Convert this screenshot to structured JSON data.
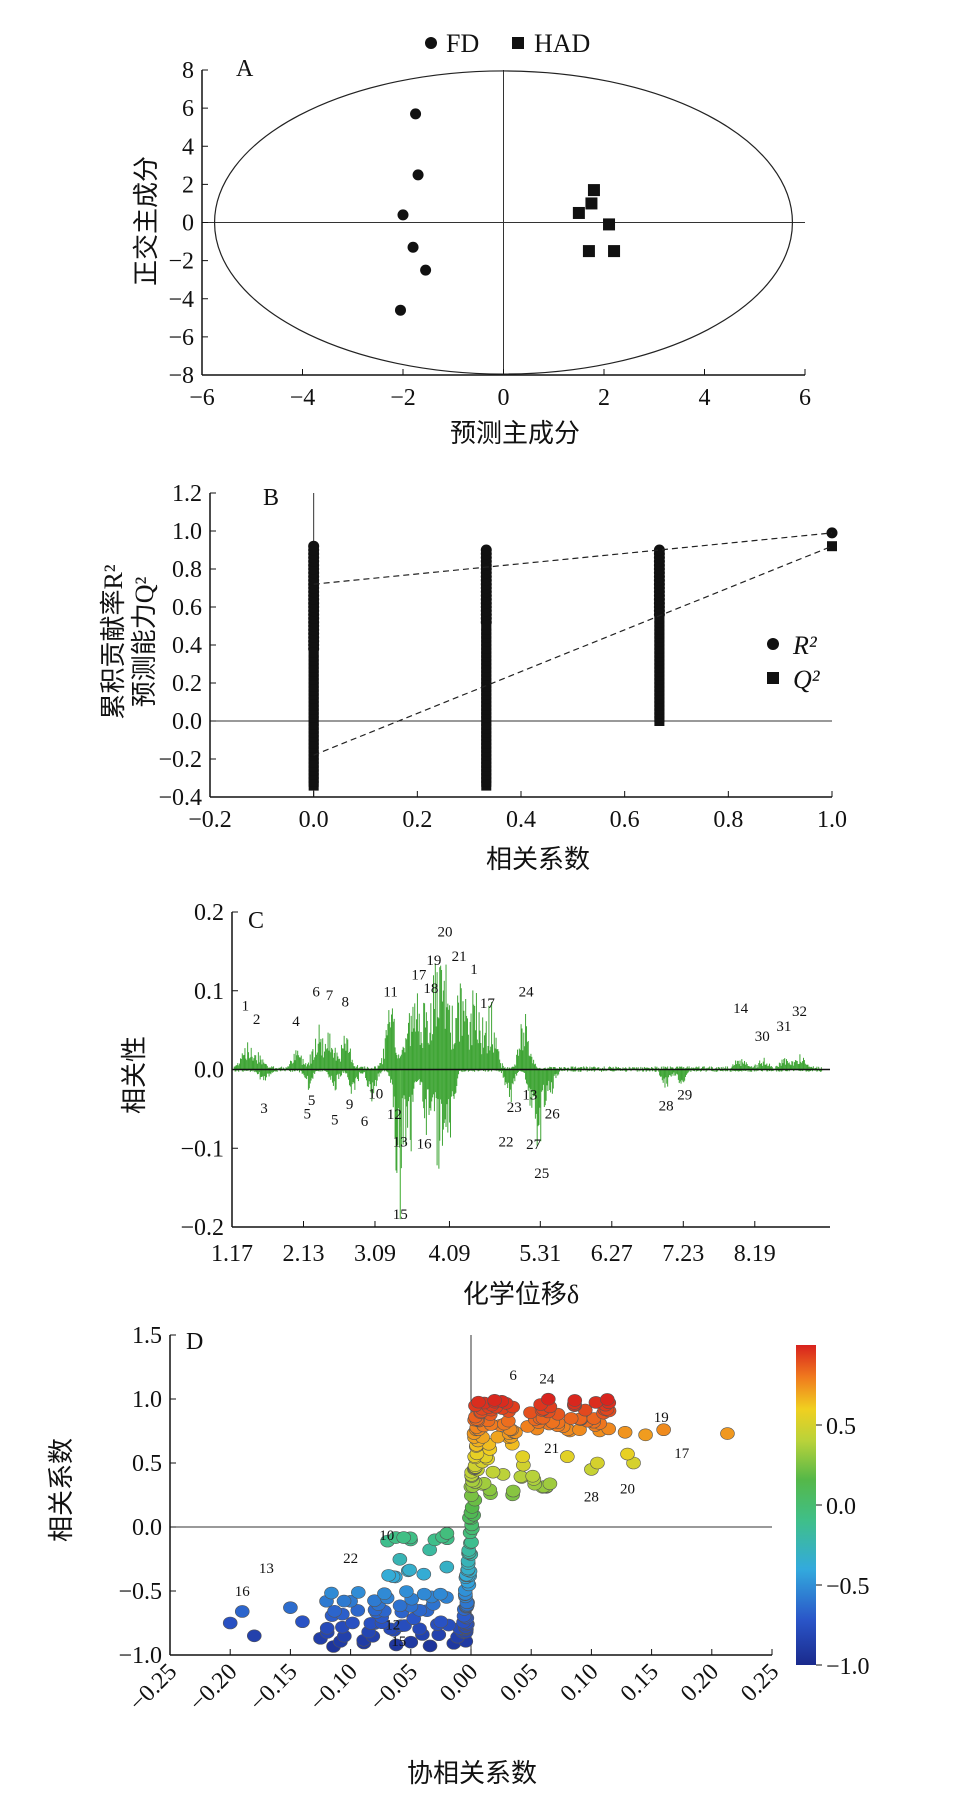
{
  "chart_data": [
    {
      "panel_label": "A",
      "type": "scatter",
      "xlabel": "预测主成分",
      "ylabel": "正交主成分",
      "xlim": [
        -6,
        6
      ],
      "ylim": [
        -8,
        8
      ],
      "xticks": [
        "−6",
        "−4",
        "−2",
        "0",
        "2",
        "4",
        "6"
      ],
      "yticks": [
        "8",
        "6",
        "4",
        "2",
        "0",
        "−2",
        "−4",
        "−6",
        "−8"
      ],
      "legend": [
        "FD",
        "HAD"
      ],
      "legend_position": "top-center",
      "ellipse": {
        "cx": 0,
        "cy": 0,
        "rx": 5.75,
        "ry": 7.95
      },
      "series": [
        {
          "name": "FD",
          "marker": "circle",
          "points": [
            [
              -1.75,
              5.7
            ],
            [
              -1.7,
              2.5
            ],
            [
              -2.0,
              0.4
            ],
            [
              -1.8,
              -1.3
            ],
            [
              -1.55,
              -2.5
            ],
            [
              -2.05,
              -4.6
            ]
          ]
        },
        {
          "name": "HAD",
          "marker": "square",
          "points": [
            [
              1.8,
              1.7
            ],
            [
              1.75,
              1.0
            ],
            [
              1.5,
              0.5
            ],
            [
              2.1,
              -0.1
            ],
            [
              1.7,
              -1.5
            ],
            [
              2.2,
              -1.5
            ]
          ]
        }
      ]
    },
    {
      "panel_label": "B",
      "type": "scatter",
      "xlabel": "相关系数",
      "ylabel_line1": "累积贡献率R²",
      "ylabel_line2": "预测能力Q²",
      "xlim": [
        -0.2,
        1.0
      ],
      "ylim": [
        -0.4,
        1.2
      ],
      "xticks": [
        "−0.2",
        "0.0",
        "0.2",
        "0.4",
        "0.6",
        "0.8",
        "1.0"
      ],
      "yticks": [
        "1.2",
        "1.0",
        "0.8",
        "0.6",
        "0.4",
        "0.2",
        "0.0",
        "−0.2",
        "−0.4"
      ],
      "legend": [
        "R²",
        "Q²"
      ],
      "legend_position": "right",
      "r2_columns": [
        {
          "x": 0.0,
          "ymin": 0.38,
          "ymax": 0.93
        },
        {
          "x": 0.333,
          "ymin": 0.52,
          "ymax": 0.91
        },
        {
          "x": 0.667,
          "ymin": 0.56,
          "ymax": 0.91
        }
      ],
      "q2_columns": [
        {
          "x": 0.0,
          "ymin": -0.34,
          "ymax": 0.37
        },
        {
          "x": 0.333,
          "ymin": -0.34,
          "ymax": 0.5
        },
        {
          "x": 0.667,
          "ymin": 0.0,
          "ymax": 0.55
        }
      ],
      "r2_original": [
        1.0,
        0.99
      ],
      "q2_original": [
        1.0,
        0.92
      ],
      "r2_line": [
        [
          0.0,
          0.72
        ],
        [
          1.0,
          0.99
        ]
      ],
      "q2_line": [
        [
          0.0,
          -0.18
        ],
        [
          1.0,
          0.92
        ]
      ]
    },
    {
      "panel_label": "C",
      "type": "bar",
      "xlabel": "化学位移δ",
      "ylabel": "相关性",
      "xlim": [
        1.17,
        9.2
      ],
      "ylim": [
        -0.2,
        0.2
      ],
      "xticks": [
        "1.17",
        "2.13",
        "3.09",
        "4.09",
        "5.31",
        "6.27",
        "7.23",
        "8.19"
      ],
      "yticks": [
        "0.2",
        "0.1",
        "0.0",
        "−0.1",
        "−0.2"
      ],
      "peak_labels": [
        {
          "t": "1",
          "x": 1.35,
          "y": 0.075
        },
        {
          "t": "2",
          "x": 1.5,
          "y": 0.058
        },
        {
          "t": "4",
          "x": 2.03,
          "y": 0.055
        },
        {
          "t": "6",
          "x": 2.3,
          "y": 0.093
        },
        {
          "t": "7",
          "x": 2.48,
          "y": 0.088
        },
        {
          "t": "8",
          "x": 2.69,
          "y": 0.08
        },
        {
          "t": "11",
          "x": 3.3,
          "y": 0.093
        },
        {
          "t": "17",
          "x": 3.68,
          "y": 0.114
        },
        {
          "t": "18",
          "x": 3.84,
          "y": 0.097
        },
        {
          "t": "19",
          "x": 3.88,
          "y": 0.133
        },
        {
          "t": "20",
          "x": 4.03,
          "y": 0.169
        },
        {
          "t": "21",
          "x": 4.22,
          "y": 0.138
        },
        {
          "t": "1",
          "x": 4.42,
          "y": 0.121
        },
        {
          "t": "17",
          "x": 4.6,
          "y": 0.078
        },
        {
          "t": "24",
          "x": 5.12,
          "y": 0.093
        },
        {
          "t": "14",
          "x": 8.0,
          "y": 0.072
        },
        {
          "t": "30",
          "x": 8.29,
          "y": 0.036
        },
        {
          "t": "31",
          "x": 8.58,
          "y": 0.049
        },
        {
          "t": "32",
          "x": 8.79,
          "y": 0.068
        },
        {
          "t": "3",
          "x": 1.6,
          "y": -0.055
        },
        {
          "t": "5",
          "x": 2.24,
          "y": -0.045
        },
        {
          "t": "5",
          "x": 2.18,
          "y": -0.062
        },
        {
          "t": "5",
          "x": 2.55,
          "y": -0.07
        },
        {
          "t": "9",
          "x": 2.75,
          "y": -0.05
        },
        {
          "t": "10",
          "x": 3.1,
          "y": -0.037
        },
        {
          "t": "6",
          "x": 2.95,
          "y": -0.072
        },
        {
          "t": "12",
          "x": 3.35,
          "y": -0.063
        },
        {
          "t": "13",
          "x": 3.43,
          "y": -0.098
        },
        {
          "t": "16",
          "x": 3.75,
          "y": -0.1
        },
        {
          "t": "15",
          "x": 3.43,
          "y": -0.19
        },
        {
          "t": "23",
          "x": 4.96,
          "y": -0.054
        },
        {
          "t": "13",
          "x": 5.17,
          "y": -0.038
        },
        {
          "t": "22",
          "x": 4.85,
          "y": -0.098
        },
        {
          "t": "26",
          "x": 5.47,
          "y": -0.062
        },
        {
          "t": "27",
          "x": 5.22,
          "y": -0.101
        },
        {
          "t": "25",
          "x": 5.33,
          "y": -0.138
        },
        {
          "t": "28",
          "x": 7.0,
          "y": -0.052
        },
        {
          "t": "29",
          "x": 7.25,
          "y": -0.038
        }
      ]
    },
    {
      "panel_label": "D",
      "type": "scatter",
      "xlabel": "协相关系数",
      "ylabel": "相关系数",
      "xlim": [
        -0.25,
        0.25
      ],
      "ylim": [
        -1.0,
        1.5
      ],
      "xticks": [
        "−0.25",
        "−0.20",
        "−0.15",
        "−0.10",
        "−0.05",
        "0.00",
        "0.05",
        "0.10",
        "0.15",
        "0.20",
        "0.25"
      ],
      "yticks": [
        "1.5",
        "1.0",
        "0.5",
        "0.0",
        "−0.5",
        "−1.0"
      ],
      "colorbar_ticks": [
        "0.5",
        "0.0",
        "−0.5",
        "−1.0"
      ],
      "colorbar_range": [
        -1.0,
        1.0
      ],
      "point_labels": [
        {
          "t": "6",
          "x": 0.035,
          "y": 1.15
        },
        {
          "t": "24",
          "x": 0.063,
          "y": 1.12
        },
        {
          "t": "19",
          "x": 0.158,
          "y": 0.82
        },
        {
          "t": "17",
          "x": 0.175,
          "y": 0.54
        },
        {
          "t": "21",
          "x": 0.067,
          "y": 0.58
        },
        {
          "t": "20",
          "x": 0.13,
          "y": 0.26
        },
        {
          "t": "28",
          "x": 0.1,
          "y": 0.2
        },
        {
          "t": "10",
          "x": -0.07,
          "y": -0.1
        },
        {
          "t": "22",
          "x": -0.1,
          "y": -0.28
        },
        {
          "t": "13",
          "x": -0.17,
          "y": -0.36
        },
        {
          "t": "16",
          "x": -0.19,
          "y": -0.54
        },
        {
          "t": "12",
          "x": -0.065,
          "y": -0.8
        },
        {
          "t": "15",
          "x": -0.06,
          "y": -0.93
        }
      ]
    }
  ]
}
